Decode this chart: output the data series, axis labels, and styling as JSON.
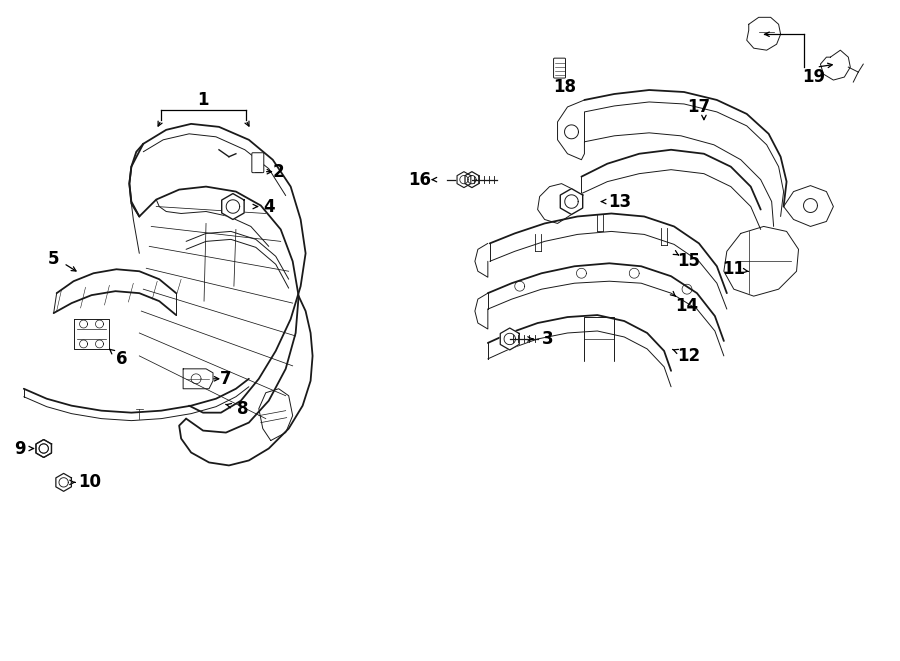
{
  "bg_color": "#ffffff",
  "line_color": "#1a1a1a",
  "figsize": [
    9.0,
    6.61
  ],
  "dpi": 100
}
